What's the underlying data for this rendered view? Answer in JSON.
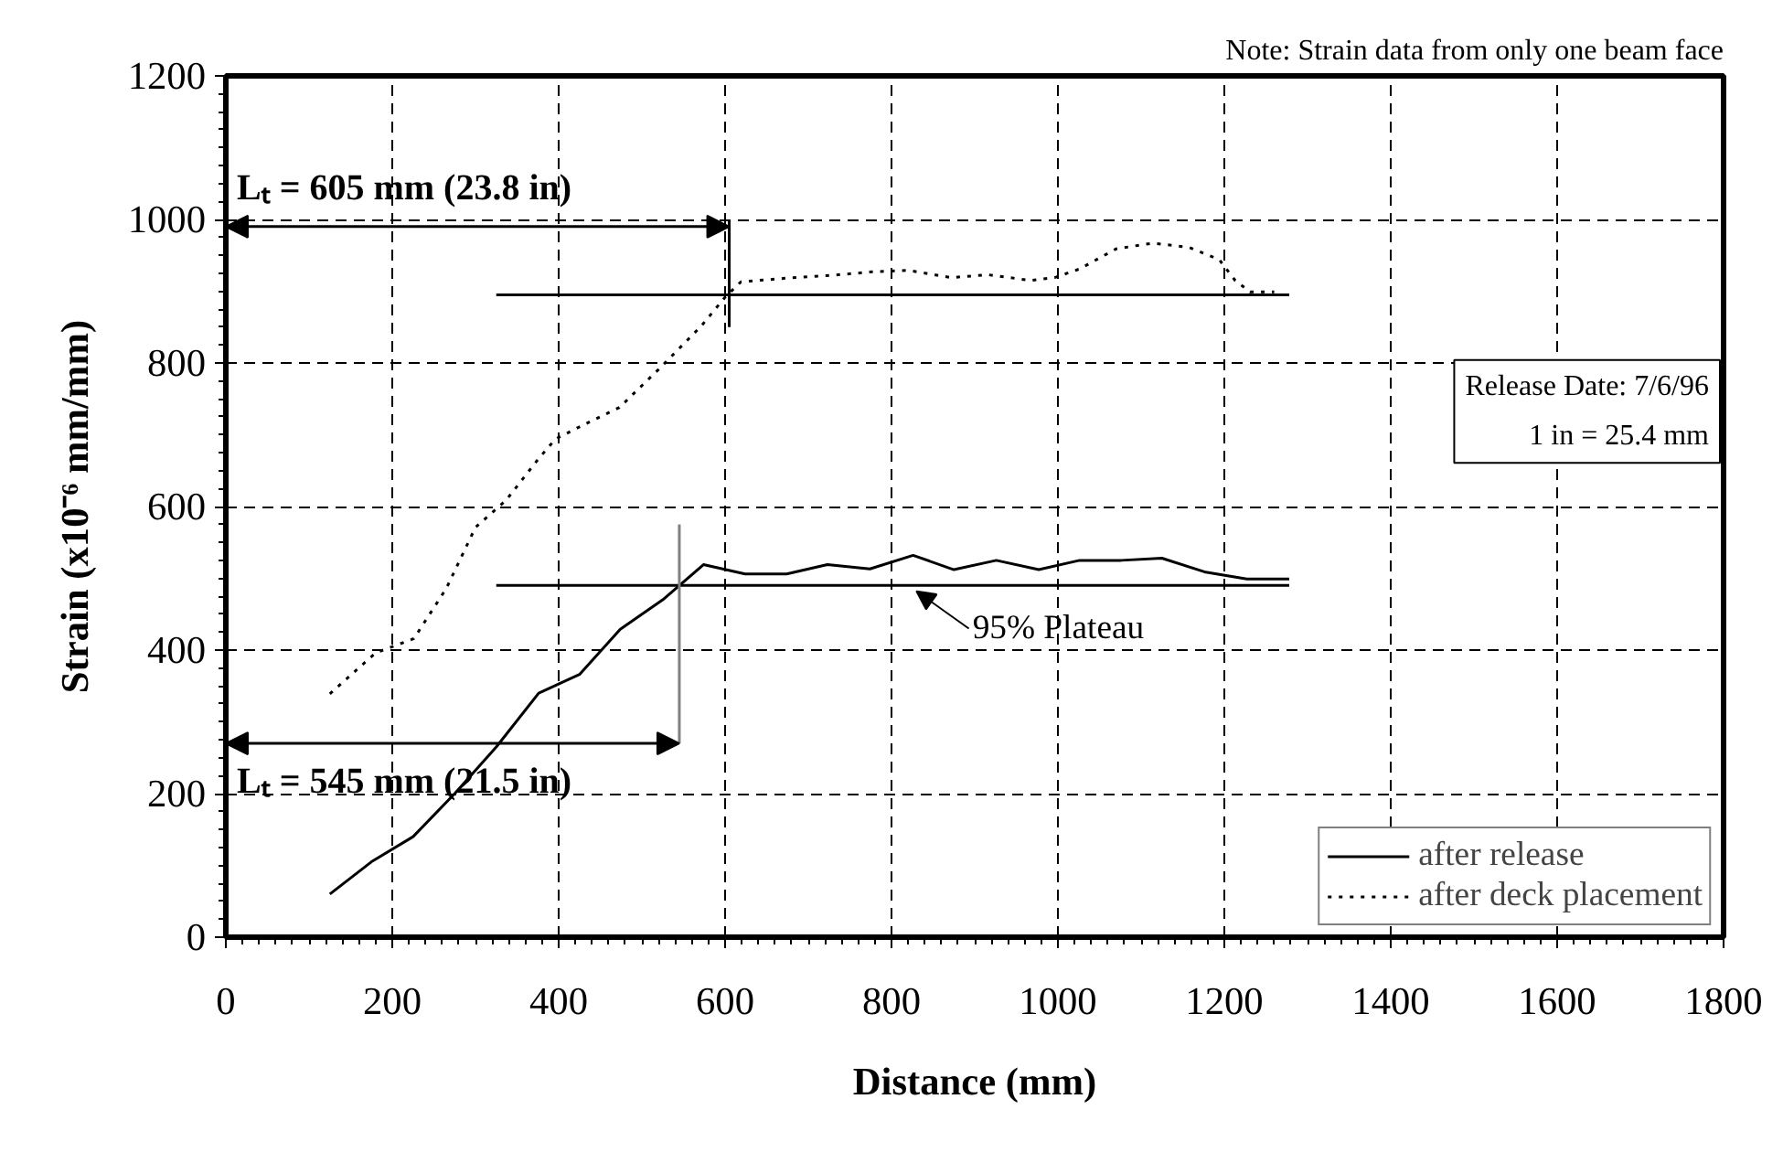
{
  "chart_data": {
    "type": "line",
    "xlabel": "Distance (mm)",
    "ylabel": "Strain (x10⁻⁶ mm/mm)",
    "xlim": [
      0,
      1800
    ],
    "ylim": [
      0,
      1200
    ],
    "xticks": [
      0,
      200,
      400,
      600,
      800,
      1000,
      1200,
      1400,
      1600,
      1800
    ],
    "yticks": [
      0,
      200,
      400,
      600,
      800,
      1000,
      1200
    ],
    "grid": true,
    "legend": "bottom right",
    "series": [
      {
        "name": "after release",
        "color": "#000000",
        "line_style": "solid",
        "x": [
          125,
          175,
          225,
          275,
          325,
          376,
          425,
          474,
          525,
          574,
          624,
          674,
          723,
          774,
          826,
          875,
          926,
          977,
          1026,
          1076,
          1125,
          1176,
          1227,
          1278
        ],
        "values": [
          60,
          105,
          140,
          200,
          265,
          340,
          366,
          429,
          470,
          519,
          506,
          506,
          519,
          513,
          532,
          512,
          525,
          512,
          525,
          525,
          528,
          509,
          499,
          499
        ]
      },
      {
        "name": "after deck placement",
        "color": "#000000",
        "line_style": "dotted",
        "x": [
          125,
          180,
          226,
          265,
          300,
          337,
          374,
          396,
          432,
          473,
          520,
          571,
          601,
          619,
          672,
          727,
          777,
          821,
          872,
          916,
          967,
          996,
          1026,
          1070,
          1114,
          1158,
          1194,
          1213,
          1231,
          1260
        ],
        "values": [
          339,
          396,
          416,
          486,
          571,
          609,
          664,
          694,
          715,
          738,
          791,
          851,
          893,
          913,
          918,
          922,
          927,
          929,
          919,
          923,
          915,
          919,
          931,
          959,
          967,
          961,
          944,
          915,
          899,
          899
        ]
      },
      {
        "color": "#000000",
        "line_style": "solid",
        "x": [
          325,
          1278
        ],
        "values": [
          490,
          490
        ]
      },
      {
        "color": "#000000",
        "line_style": "solid",
        "x": [
          325,
          1278
        ],
        "values": [
          895,
          895
        ]
      },
      {
        "color": "#000000",
        "line_style": "solid",
        "x": [
          605,
          605
        ],
        "values": [
          1000,
          850
        ]
      },
      {
        "color": "#808080",
        "line_style": "solid",
        "x": [
          545,
          545
        ],
        "values": [
          575,
          270
        ]
      }
    ],
    "annotations": [
      "Note: Strain data from only one beam face",
      "Release Date: 7/6/96\n1 in = 25.4 mm",
      {
        "text": "Lₜ = 605 mm (23.8 in)",
        "x": 605,
        "y": 990
      },
      {
        "text": "Lₜ = 545 mm (21.5 in)",
        "x": 545,
        "y": 270
      },
      {
        "text": "95% Plateau",
        "x": 830,
        "y": 490
      }
    ]
  }
}
